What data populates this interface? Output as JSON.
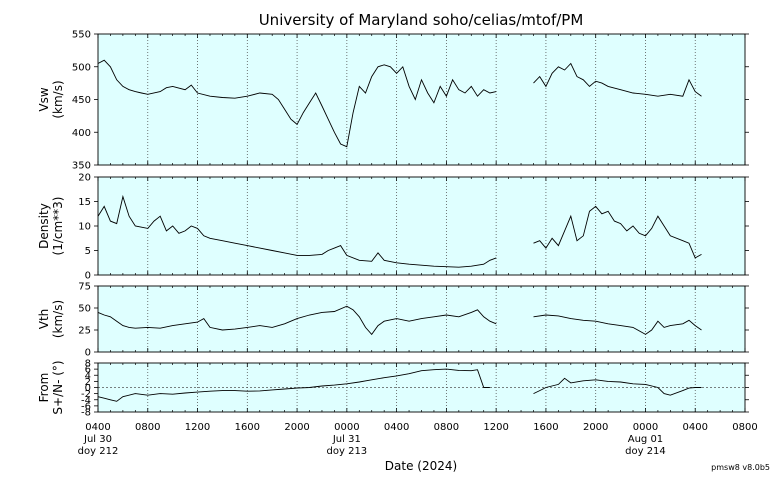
{
  "title": "University of Maryland  soho/celias/mtof/PM",
  "xlabel": "Date (2024)",
  "version": "pmsw8 v8.0b5",
  "colors": {
    "panel_bg": "#dfffff",
    "line": "#000000",
    "grid": "#555555"
  },
  "x_ticks": [
    {
      "h": 0,
      "label": "0400",
      "sub1": "Jul 30",
      "sub2": "doy 212"
    },
    {
      "h": 4,
      "label": "0800"
    },
    {
      "h": 8,
      "label": "1200"
    },
    {
      "h": 12,
      "label": "1600"
    },
    {
      "h": 16,
      "label": "2000"
    },
    {
      "h": 20,
      "label": "0000",
      "sub1": "Jul 31",
      "sub2": "doy 213"
    },
    {
      "h": 24,
      "label": "0400"
    },
    {
      "h": 28,
      "label": "0800"
    },
    {
      "h": 32,
      "label": "1200"
    },
    {
      "h": 36,
      "label": "1600"
    },
    {
      "h": 40,
      "label": "2000"
    },
    {
      "h": 44,
      "label": "0000",
      "sub1": "Aug 01",
      "sub2": "doy 214"
    },
    {
      "h": 48,
      "label": "0400"
    },
    {
      "h": 52,
      "label": "0800"
    }
  ],
  "chart_data": [
    {
      "type": "line",
      "id": "vsw",
      "ylabel_lines": [
        "Vsw",
        "(km/s)"
      ],
      "ylim": [
        350,
        550
      ],
      "yticks": [
        "350",
        "400",
        "450",
        "500",
        "550"
      ],
      "x_units": "hours after 2024-07-30 04:00",
      "segments": [
        [
          [
            0,
            505
          ],
          [
            0.5,
            510
          ],
          [
            1,
            500
          ],
          [
            1.5,
            480
          ],
          [
            2,
            470
          ],
          [
            2.5,
            465
          ],
          [
            3,
            462
          ],
          [
            3.5,
            460
          ],
          [
            4,
            458
          ],
          [
            5,
            462
          ],
          [
            5.5,
            468
          ],
          [
            6,
            470
          ],
          [
            7,
            465
          ],
          [
            7.5,
            472
          ],
          [
            8,
            460
          ],
          [
            9,
            455
          ],
          [
            10,
            453
          ],
          [
            11,
            452
          ],
          [
            12,
            455
          ],
          [
            13,
            460
          ],
          [
            14,
            458
          ],
          [
            14.5,
            450
          ],
          [
            15,
            435
          ],
          [
            15.5,
            420
          ],
          [
            16,
            412
          ],
          [
            16.5,
            430
          ],
          [
            17,
            445
          ],
          [
            17.5,
            460
          ],
          [
            18,
            440
          ],
          [
            18.5,
            420
          ],
          [
            19,
            400
          ],
          [
            19.5,
            382
          ],
          [
            20,
            378
          ],
          [
            20.5,
            430
          ],
          [
            21,
            470
          ],
          [
            21.5,
            460
          ],
          [
            22,
            485
          ],
          [
            22.5,
            500
          ],
          [
            23,
            503
          ],
          [
            23.5,
            500
          ],
          [
            24,
            490
          ],
          [
            24.5,
            500
          ],
          [
            25,
            470
          ],
          [
            25.5,
            450
          ],
          [
            26,
            480
          ],
          [
            26.5,
            460
          ],
          [
            27,
            445
          ],
          [
            27.5,
            470
          ],
          [
            28,
            455
          ],
          [
            28.5,
            480
          ],
          [
            29,
            465
          ],
          [
            29.5,
            460
          ],
          [
            30,
            470
          ],
          [
            30.5,
            455
          ],
          [
            31,
            465
          ],
          [
            31.5,
            460
          ],
          [
            32,
            462
          ]
        ],
        [
          [
            35,
            475
          ],
          [
            35.5,
            485
          ],
          [
            36,
            470
          ],
          [
            36.5,
            490
          ],
          [
            37,
            500
          ],
          [
            37.5,
            495
          ],
          [
            38,
            505
          ],
          [
            38.5,
            485
          ],
          [
            39,
            480
          ],
          [
            39.5,
            470
          ],
          [
            40,
            478
          ],
          [
            40.5,
            475
          ],
          [
            41,
            470
          ],
          [
            42,
            465
          ],
          [
            43,
            460
          ],
          [
            44,
            458
          ],
          [
            45,
            455
          ],
          [
            46,
            458
          ],
          [
            47,
            455
          ],
          [
            47.5,
            480
          ],
          [
            48,
            462
          ],
          [
            48.5,
            455
          ]
        ]
      ]
    },
    {
      "type": "line",
      "id": "density",
      "ylabel_lines": [
        "Density",
        "(1/cm**3)"
      ],
      "ylim": [
        0,
        20
      ],
      "yticks": [
        "0",
        "5",
        "10",
        "15",
        "20"
      ],
      "x_units": "hours after 2024-07-30 04:00",
      "segments": [
        [
          [
            0,
            12
          ],
          [
            0.5,
            14
          ],
          [
            1,
            11
          ],
          [
            1.5,
            10.5
          ],
          [
            2,
            16
          ],
          [
            2.5,
            12
          ],
          [
            3,
            10
          ],
          [
            4,
            9.5
          ],
          [
            4.5,
            11
          ],
          [
            5,
            12
          ],
          [
            5.5,
            9
          ],
          [
            6,
            10
          ],
          [
            6.5,
            8.5
          ],
          [
            7,
            9
          ],
          [
            7.5,
            10
          ],
          [
            8,
            9.5
          ],
          [
            8.5,
            8
          ],
          [
            9,
            7.5
          ],
          [
            10,
            7
          ],
          [
            11,
            6.5
          ],
          [
            12,
            6
          ],
          [
            13,
            5.5
          ],
          [
            14,
            5
          ],
          [
            15,
            4.5
          ],
          [
            16,
            4
          ],
          [
            17,
            4
          ],
          [
            18,
            4.2
          ],
          [
            18.5,
            5
          ],
          [
            19,
            5.5
          ],
          [
            19.5,
            6
          ],
          [
            20,
            4
          ],
          [
            21,
            3
          ],
          [
            22,
            2.8
          ],
          [
            22.5,
            4.5
          ],
          [
            23,
            3
          ],
          [
            24,
            2.5
          ],
          [
            25,
            2.2
          ],
          [
            26,
            2
          ],
          [
            27,
            1.8
          ],
          [
            28,
            1.7
          ],
          [
            29,
            1.6
          ],
          [
            30,
            1.8
          ],
          [
            31,
            2.2
          ],
          [
            31.5,
            3
          ],
          [
            32,
            3.5
          ]
        ],
        [
          [
            35,
            6.5
          ],
          [
            35.5,
            7
          ],
          [
            36,
            5.5
          ],
          [
            36.5,
            7.5
          ],
          [
            37,
            6
          ],
          [
            37.5,
            9
          ],
          [
            38,
            12
          ],
          [
            38.5,
            7
          ],
          [
            39,
            8
          ],
          [
            39.5,
            13
          ],
          [
            40,
            14
          ],
          [
            40.5,
            12.5
          ],
          [
            41,
            13
          ],
          [
            41.5,
            11
          ],
          [
            42,
            10.5
          ],
          [
            42.5,
            9
          ],
          [
            43,
            10
          ],
          [
            43.5,
            8.5
          ],
          [
            44,
            8
          ],
          [
            44.5,
            9.5
          ],
          [
            45,
            12
          ],
          [
            45.5,
            10
          ],
          [
            46,
            8
          ],
          [
            47,
            7
          ],
          [
            47.5,
            6.5
          ],
          [
            48,
            3.5
          ],
          [
            48.5,
            4.2
          ]
        ]
      ]
    },
    {
      "type": "line",
      "id": "vth",
      "ylabel_lines": [
        "Vth",
        "(km/s)"
      ],
      "ylim": [
        0,
        75
      ],
      "yticks": [
        "0",
        "25",
        "50",
        "75"
      ],
      "x_units": "hours after 2024-07-30 04:00",
      "segments": [
        [
          [
            0,
            45
          ],
          [
            0.5,
            42
          ],
          [
            1,
            40
          ],
          [
            1.5,
            35
          ],
          [
            2,
            30
          ],
          [
            2.5,
            28
          ],
          [
            3,
            27
          ],
          [
            4,
            28
          ],
          [
            5,
            27
          ],
          [
            6,
            30
          ],
          [
            7,
            32
          ],
          [
            8,
            34
          ],
          [
            8.5,
            38
          ],
          [
            9,
            28
          ],
          [
            10,
            25
          ],
          [
            11,
            26
          ],
          [
            12,
            28
          ],
          [
            13,
            30
          ],
          [
            14,
            28
          ],
          [
            15,
            32
          ],
          [
            16,
            38
          ],
          [
            17,
            42
          ],
          [
            18,
            45
          ],
          [
            19,
            46
          ],
          [
            20,
            52
          ],
          [
            20.5,
            48
          ],
          [
            21,
            40
          ],
          [
            21.5,
            28
          ],
          [
            22,
            20
          ],
          [
            22.5,
            30
          ],
          [
            23,
            35
          ],
          [
            24,
            38
          ],
          [
            25,
            35
          ],
          [
            26,
            38
          ],
          [
            27,
            40
          ],
          [
            28,
            42
          ],
          [
            29,
            40
          ],
          [
            30,
            45
          ],
          [
            30.5,
            48
          ],
          [
            31,
            40
          ],
          [
            31.5,
            35
          ],
          [
            32,
            32
          ]
        ],
        [
          [
            35,
            40
          ],
          [
            36,
            42
          ],
          [
            37,
            41
          ],
          [
            38,
            38
          ],
          [
            39,
            36
          ],
          [
            40,
            35
          ],
          [
            41,
            32
          ],
          [
            42,
            30
          ],
          [
            43,
            28
          ],
          [
            44,
            20
          ],
          [
            44.5,
            25
          ],
          [
            45,
            35
          ],
          [
            45.5,
            28
          ],
          [
            46,
            30
          ],
          [
            47,
            32
          ],
          [
            47.5,
            36
          ],
          [
            48,
            30
          ],
          [
            48.5,
            25
          ]
        ]
      ]
    },
    {
      "type": "line",
      "id": "flow",
      "ylabel_lines": [
        "From",
        "S+/N- (°)"
      ],
      "ylim": [
        -8,
        8
      ],
      "yticks": [
        "-8",
        "-4",
        "0",
        "4",
        "8"
      ],
      "yticks_minor": [
        "-6",
        "-2",
        "2",
        "6"
      ],
      "zero_line": true,
      "x_units": "hours after 2024-07-30 04:00",
      "segments": [
        [
          [
            0,
            -3
          ],
          [
            0.5,
            -3.5
          ],
          [
            1,
            -4
          ],
          [
            1.5,
            -4.5
          ],
          [
            2,
            -3
          ],
          [
            3,
            -2
          ],
          [
            4,
            -2.5
          ],
          [
            5,
            -2
          ],
          [
            6,
            -2.2
          ],
          [
            7,
            -1.8
          ],
          [
            8,
            -1.5
          ],
          [
            9,
            -1.2
          ],
          [
            10,
            -1
          ],
          [
            11,
            -1
          ],
          [
            12,
            -1.2
          ],
          [
            13,
            -1.1
          ],
          [
            14,
            -0.8
          ],
          [
            15,
            -0.5
          ],
          [
            16,
            -0.2
          ],
          [
            17,
            0
          ],
          [
            18,
            0.5
          ],
          [
            19,
            0.8
          ],
          [
            20,
            1.2
          ],
          [
            21,
            1.8
          ],
          [
            22,
            2.5
          ],
          [
            23,
            3.2
          ],
          [
            24,
            3.8
          ],
          [
            25,
            4.5
          ],
          [
            26,
            5.5
          ],
          [
            27,
            5.8
          ],
          [
            28,
            6
          ],
          [
            29,
            5.6
          ],
          [
            30,
            5.5
          ],
          [
            30.5,
            5.8
          ],
          [
            31,
            0
          ],
          [
            31.5,
            0
          ]
        ],
        [
          [
            35,
            -2
          ],
          [
            35.5,
            -1
          ],
          [
            36,
            0
          ],
          [
            37,
            1
          ],
          [
            37.5,
            3
          ],
          [
            38,
            1.5
          ],
          [
            39,
            2.2
          ],
          [
            40,
            2.5
          ],
          [
            41,
            2
          ],
          [
            42,
            1.8
          ],
          [
            43,
            1.2
          ],
          [
            44,
            1
          ],
          [
            45,
            0
          ],
          [
            45.5,
            -2
          ],
          [
            46,
            -2.5
          ],
          [
            47,
            -1
          ],
          [
            47.5,
            -0.2
          ],
          [
            48,
            0
          ],
          [
            48.5,
            0
          ]
        ]
      ]
    }
  ]
}
